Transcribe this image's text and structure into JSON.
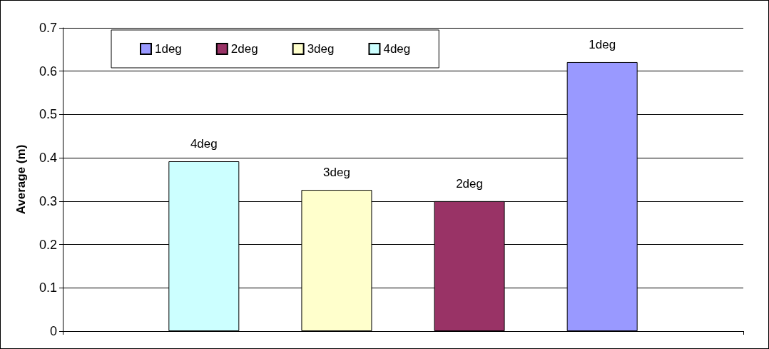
{
  "chart_data": {
    "type": "bar",
    "ylabel": "Average (m)",
    "categories": [
      null
    ],
    "series": [
      {
        "name": "4deg",
        "color": "#ccffff",
        "values": [
          0.392
        ]
      },
      {
        "name": "3deg",
        "color": "#ffffcc",
        "values": [
          0.326
        ]
      },
      {
        "name": "2deg",
        "color": "#993366",
        "values": [
          0.3
        ]
      },
      {
        "name": "1deg",
        "color": "#9999ff",
        "values": [
          0.621
        ]
      }
    ],
    "ylim": [
      0,
      0.7
    ],
    "yticks": [
      0,
      0.1,
      0.2,
      0.3,
      0.4,
      0.5,
      0.6,
      0.7
    ],
    "grid": "y",
    "legend": "top left"
  }
}
